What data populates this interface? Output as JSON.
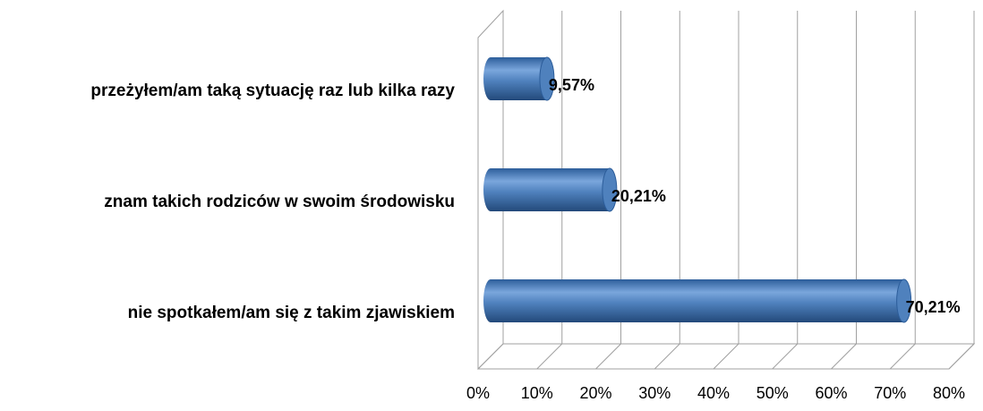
{
  "chart_data": {
    "type": "bar",
    "orientation": "horizontal",
    "categories": [
      "przeżyłem/am taką sytuację raz lub kilka razy",
      "znam takich rodziców w swoim środowisku",
      "nie spotkałem/am się z takim zjawiskiem"
    ],
    "values": [
      9.57,
      20.21,
      70.21
    ],
    "value_labels": [
      "9,57%",
      "20,21%",
      "70,21%"
    ],
    "color": "#4f81bd",
    "xlim": [
      0,
      80
    ],
    "xticks": [
      {
        "value": 0,
        "label": "0%"
      },
      {
        "value": 10,
        "label": "10%"
      },
      {
        "value": 20,
        "label": "20%"
      },
      {
        "value": 30,
        "label": "30%"
      },
      {
        "value": 40,
        "label": "40%"
      },
      {
        "value": 50,
        "label": "50%"
      },
      {
        "value": 60,
        "label": "60%"
      },
      {
        "value": 70,
        "label": "70%"
      },
      {
        "value": 80,
        "label": "80%"
      }
    ],
    "grid": true
  }
}
